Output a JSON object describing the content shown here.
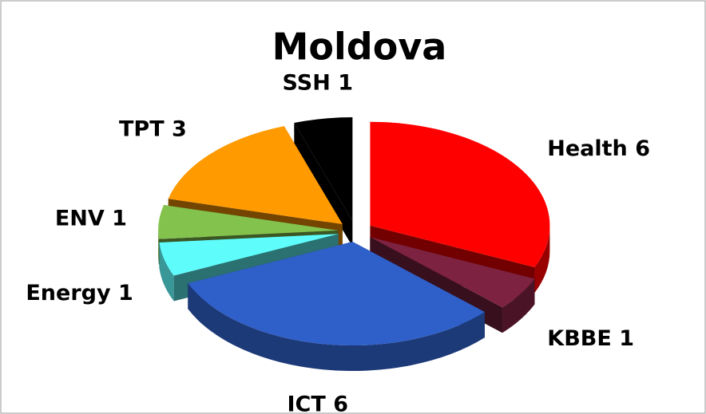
{
  "chart_data": {
    "type": "pie",
    "title": "Moldova",
    "categories": [
      "Health",
      "KBBE",
      "ICT",
      "Energy",
      "ENV",
      "TPT",
      "SSH"
    ],
    "values": [
      6,
      1,
      6,
      1,
      1,
      3,
      1
    ],
    "colors": [
      "#ff0000",
      "#7d2240",
      "#2f5fc8",
      "#5ffcfc",
      "#84c24e",
      "#ff9a00",
      "#000000"
    ],
    "exploded": true,
    "three_d": true
  }
}
